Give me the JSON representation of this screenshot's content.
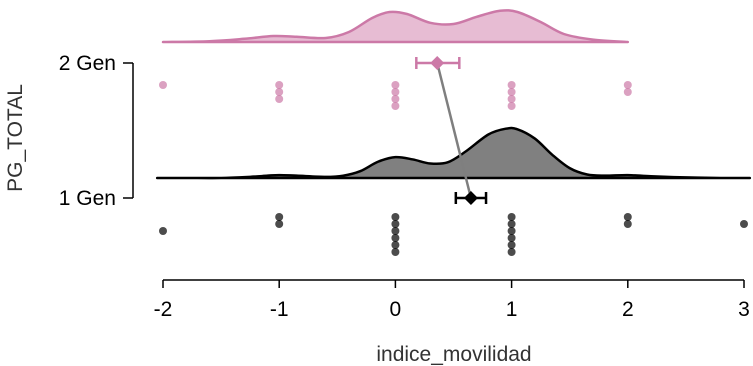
{
  "chart_data": {
    "type": "raincloud",
    "xlabel": "indice_movilidad",
    "ylabel": "PG_TOTAL",
    "xlim": [
      -2,
      3
    ],
    "xticks": [
      "-2",
      "-1",
      "0",
      "1",
      "2",
      "3"
    ],
    "categories": [
      "1 Gen",
      "2 Gen"
    ],
    "series": [
      {
        "name": "1 Gen",
        "color": "#000000",
        "density_fill": "#808080",
        "mean": 0.65,
        "ci": [
          0.52,
          0.78
        ],
        "points": [
          {
            "x": -2,
            "row": 2
          },
          {
            "x": -1,
            "row": 0
          },
          {
            "x": -1,
            "row": 1
          },
          {
            "x": 0,
            "row": 0
          },
          {
            "x": 0,
            "row": 1
          },
          {
            "x": 0,
            "row": 2
          },
          {
            "x": 0,
            "row": 3
          },
          {
            "x": 0,
            "row": 4
          },
          {
            "x": 0,
            "row": 5
          },
          {
            "x": 1,
            "row": 0
          },
          {
            "x": 1,
            "row": 1
          },
          {
            "x": 1,
            "row": 2
          },
          {
            "x": 1,
            "row": 3
          },
          {
            "x": 1,
            "row": 4
          },
          {
            "x": 1,
            "row": 5
          },
          {
            "x": 2,
            "row": 0
          },
          {
            "x": 2,
            "row": 1
          },
          {
            "x": 3,
            "row": 1
          }
        ],
        "density": [
          {
            "x": -2.05,
            "y": 0.0
          },
          {
            "x": -1.8,
            "y": 0.0
          },
          {
            "x": -1.5,
            "y": 0.0
          },
          {
            "x": -1.25,
            "y": 0.02
          },
          {
            "x": -1.1,
            "y": 0.04
          },
          {
            "x": -1.0,
            "y": 0.05
          },
          {
            "x": -0.85,
            "y": 0.04
          },
          {
            "x": -0.6,
            "y": 0.02
          },
          {
            "x": -0.45,
            "y": 0.04
          },
          {
            "x": -0.3,
            "y": 0.12
          },
          {
            "x": -0.15,
            "y": 0.28
          },
          {
            "x": 0.0,
            "y": 0.36
          },
          {
            "x": 0.15,
            "y": 0.32
          },
          {
            "x": 0.3,
            "y": 0.25
          },
          {
            "x": 0.45,
            "y": 0.27
          },
          {
            "x": 0.6,
            "y": 0.45
          },
          {
            "x": 0.8,
            "y": 0.75
          },
          {
            "x": 0.95,
            "y": 0.85
          },
          {
            "x": 1.05,
            "y": 0.84
          },
          {
            "x": 1.2,
            "y": 0.68
          },
          {
            "x": 1.35,
            "y": 0.4
          },
          {
            "x": 1.5,
            "y": 0.17
          },
          {
            "x": 1.65,
            "y": 0.06
          },
          {
            "x": 1.8,
            "y": 0.04
          },
          {
            "x": 2.0,
            "y": 0.05
          },
          {
            "x": 2.2,
            "y": 0.03
          },
          {
            "x": 2.5,
            "y": 0.01
          },
          {
            "x": 2.8,
            "y": 0.0
          },
          {
            "x": 3.05,
            "y": 0.0
          }
        ]
      },
      {
        "name": "2 Gen",
        "color": "#cc79a7",
        "density_fill": "#e7bcd3",
        "mean": 0.36,
        "ci": [
          0.18,
          0.55
        ],
        "points": [
          {
            "x": -2,
            "row": 0
          },
          {
            "x": -1,
            "row": 0
          },
          {
            "x": -1,
            "row": 1
          },
          {
            "x": -1,
            "row": 2
          },
          {
            "x": 0,
            "row": 0
          },
          {
            "x": 0,
            "row": 1
          },
          {
            "x": 0,
            "row": 2
          },
          {
            "x": 0,
            "row": 3
          },
          {
            "x": 1,
            "row": 0
          },
          {
            "x": 1,
            "row": 1
          },
          {
            "x": 1,
            "row": 2
          },
          {
            "x": 1,
            "row": 3
          },
          {
            "x": 2,
            "row": 0
          },
          {
            "x": 2,
            "row": 1
          }
        ],
        "density": [
          {
            "x": -2.0,
            "y": 0.0
          },
          {
            "x": -1.6,
            "y": 0.02
          },
          {
            "x": -1.3,
            "y": 0.08
          },
          {
            "x": -1.05,
            "y": 0.15
          },
          {
            "x": -0.85,
            "y": 0.13
          },
          {
            "x": -0.6,
            "y": 0.1
          },
          {
            "x": -0.4,
            "y": 0.25
          },
          {
            "x": -0.2,
            "y": 0.6
          },
          {
            "x": -0.05,
            "y": 0.75
          },
          {
            "x": 0.1,
            "y": 0.7
          },
          {
            "x": 0.3,
            "y": 0.48
          },
          {
            "x": 0.5,
            "y": 0.45
          },
          {
            "x": 0.7,
            "y": 0.63
          },
          {
            "x": 0.9,
            "y": 0.78
          },
          {
            "x": 1.05,
            "y": 0.75
          },
          {
            "x": 1.25,
            "y": 0.5
          },
          {
            "x": 1.45,
            "y": 0.2
          },
          {
            "x": 1.7,
            "y": 0.06
          },
          {
            "x": 2.0,
            "y": 0.0
          }
        ]
      }
    ]
  }
}
